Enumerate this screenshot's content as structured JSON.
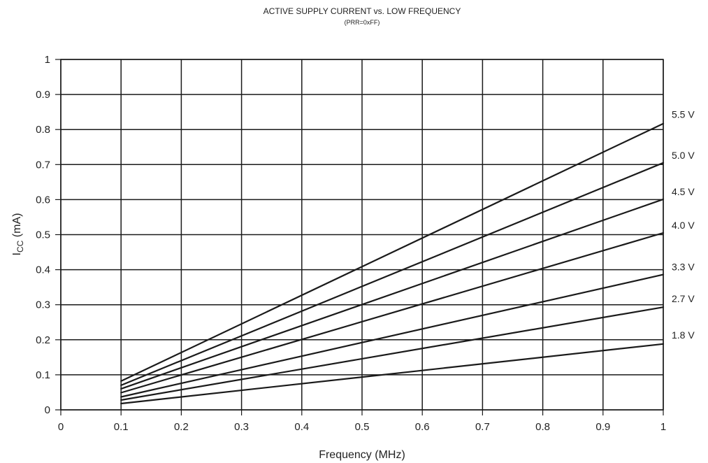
{
  "chart_data": {
    "type": "line",
    "title": "ACTIVE SUPPLY CURRENT vs. LOW FREQUENCY",
    "subtitle": "(PRR=0xFF)",
    "xlabel": "Frequency (MHz)",
    "ylabel_main": "I",
    "ylabel_sub": "CC",
    "ylabel_unit": " (mA)",
    "xlim": [
      0,
      1
    ],
    "ylim": [
      0,
      1
    ],
    "x_ticks": [
      "0",
      "0.1",
      "0.2",
      "0.3",
      "0.4",
      "0.5",
      "0.6",
      "0.7",
      "0.8",
      "0.9",
      "1"
    ],
    "y_ticks": [
      "0",
      "0.1",
      "0.2",
      "0.3",
      "0.4",
      "0.5",
      "0.6",
      "0.7",
      "0.8",
      "0.9",
      "1"
    ],
    "grid": true,
    "legend": "series labels at right end of lines",
    "colors": {
      "line": "#1a1a1a",
      "grid": "#1a1a1a",
      "text": "#222222"
    },
    "series": [
      {
        "name": "5.5 V",
        "x": [
          0.1,
          1.0
        ],
        "y": [
          0.082,
          0.817
        ]
      },
      {
        "name": "5.0 V",
        "x": [
          0.1,
          1.0
        ],
        "y": [
          0.07,
          0.705
        ]
      },
      {
        "name": "4.5 V",
        "x": [
          0.1,
          1.0
        ],
        "y": [
          0.06,
          0.601
        ]
      },
      {
        "name": "4.0 V",
        "x": [
          0.1,
          1.0
        ],
        "y": [
          0.049,
          0.505
        ]
      },
      {
        "name": "3.3 V",
        "x": [
          0.1,
          1.0
        ],
        "y": [
          0.037,
          0.386
        ]
      },
      {
        "name": "2.7 V",
        "x": [
          0.1,
          1.0
        ],
        "y": [
          0.028,
          0.293
        ]
      },
      {
        "name": "1.8 V",
        "x": [
          0.1,
          1.0
        ],
        "y": [
          0.018,
          0.188
        ]
      }
    ]
  }
}
